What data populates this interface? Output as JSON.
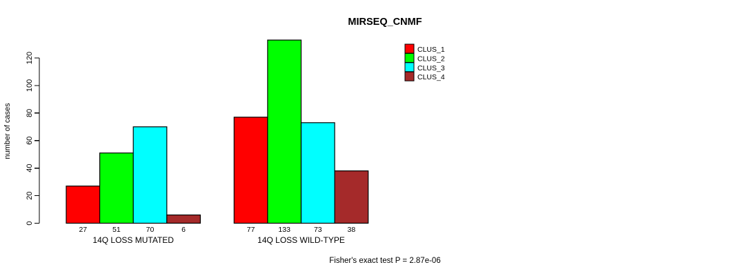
{
  "page": {
    "title": "MIRSEQ_CNMF"
  },
  "chart_data": {
    "type": "bar",
    "title": "MIRSEQ_CNMF",
    "xlabel": "",
    "ylabel": "number of cases",
    "yticks": [
      0,
      20,
      40,
      60,
      80,
      100,
      120
    ],
    "ylim": [
      0,
      133
    ],
    "grid": false,
    "legend_position": "top-right",
    "categories": [
      "14Q LOSS MUTATED",
      "14Q LOSS WILD-TYPE"
    ],
    "series": [
      {
        "name": "CLUS_1",
        "color": "#FF0000",
        "values": [
          27,
          77
        ]
      },
      {
        "name": "CLUS_2",
        "color": "#00FF00",
        "values": [
          51,
          133
        ]
      },
      {
        "name": "CLUS_3",
        "color": "#00FFFF",
        "values": [
          70,
          73
        ]
      },
      {
        "name": "CLUS_4",
        "color": "#A52A2A",
        "values": [
          6,
          38
        ]
      }
    ],
    "bar_value_labels": true,
    "footnote": "Fisher's exact test P = 2.87e-06",
    "colors": {
      "bar_border": "#000000",
      "axis": "#000000",
      "background": "#FFFFFF"
    }
  }
}
